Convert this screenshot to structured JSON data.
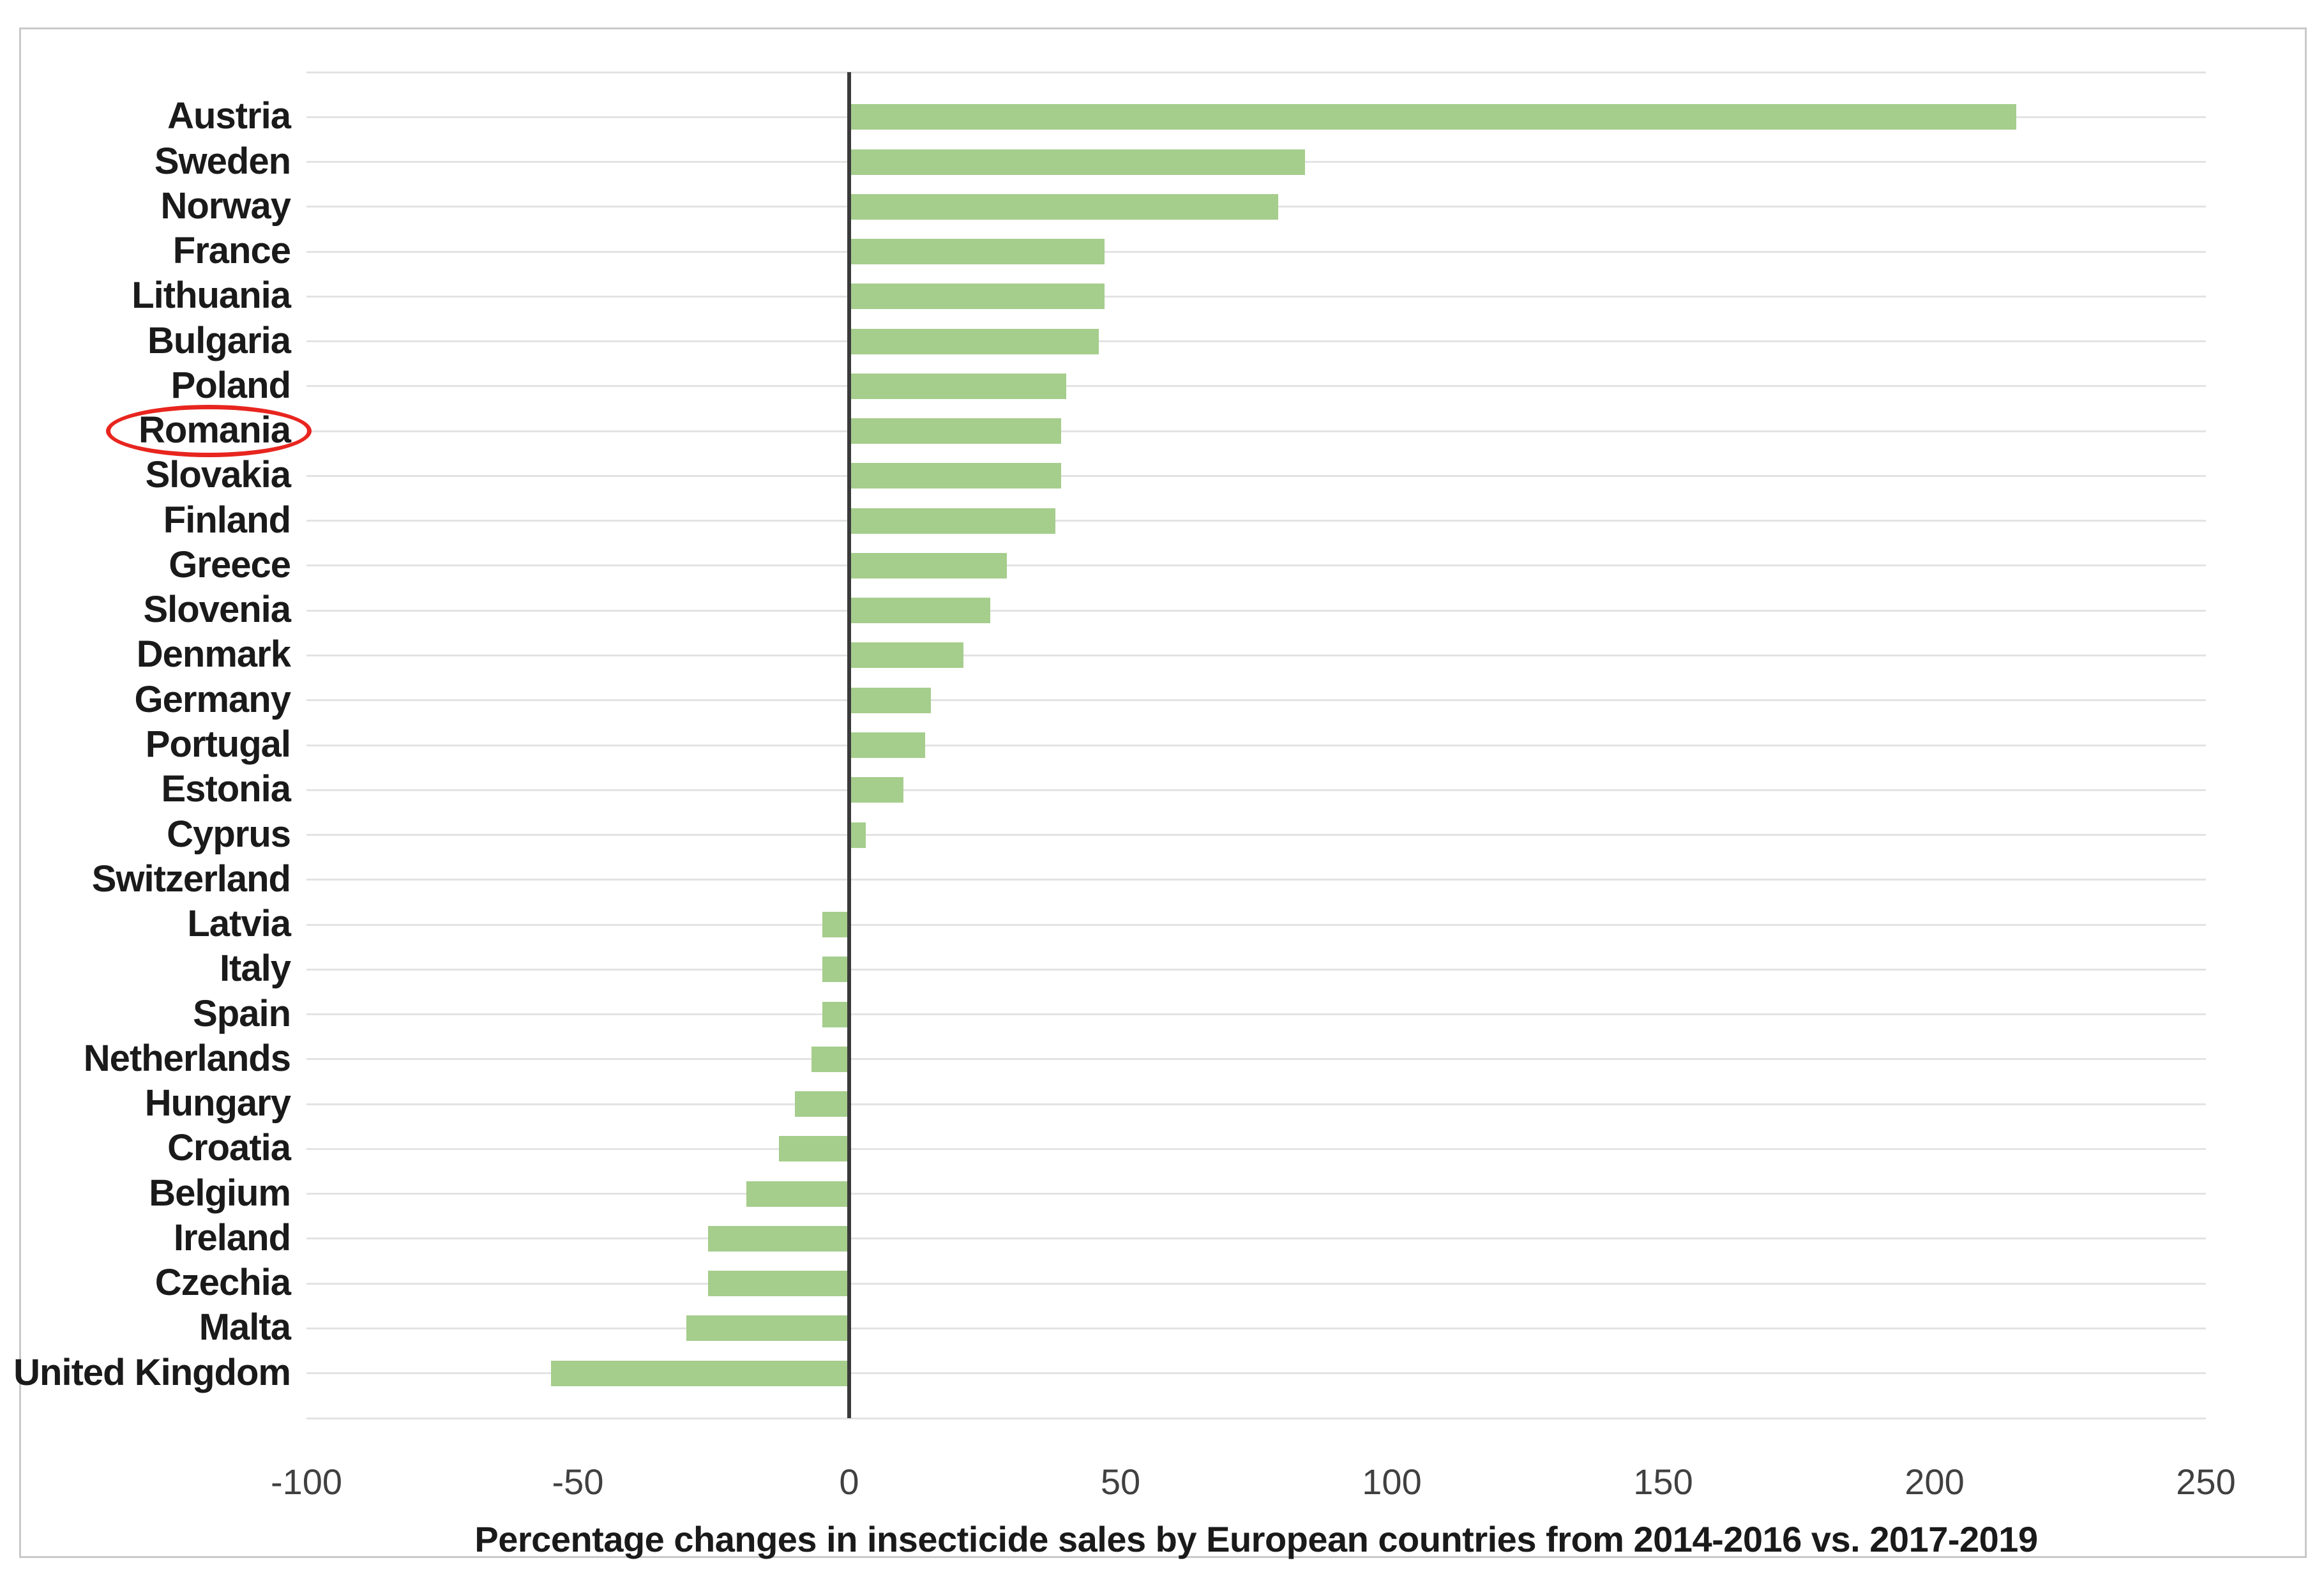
{
  "chart_data": {
    "type": "bar",
    "orientation": "horizontal",
    "title": "Percentage changes in insecticide sales by European countries from 2014-2016 vs. 2017-2019",
    "categories": [
      "Austria",
      "Sweden",
      "Norway",
      "France",
      "Lithuania",
      "Bulgaria",
      "Poland",
      "Romania",
      "Slovakia",
      "Finland",
      "Greece",
      "Slovenia",
      "Denmark",
      "Germany",
      "Portugal",
      "Estonia",
      "Cyprus",
      "Switzerland",
      "Latvia",
      "Italy",
      "Spain",
      "Netherlands",
      "Hungary",
      "Croatia",
      "Belgium",
      "Ireland",
      "Czechia",
      "Malta",
      "United Kingdom"
    ],
    "values": [
      215,
      84,
      79,
      47,
      47,
      46,
      40,
      39,
      39,
      38,
      29,
      26,
      21,
      15,
      14,
      10,
      3,
      0,
      -5,
      -5,
      -5,
      -7,
      -10,
      -13,
      -19,
      -26,
      -26,
      -30,
      -55
    ],
    "xlim": [
      -100,
      250
    ],
    "x_ticks": [
      -100,
      -50,
      0,
      50,
      100,
      150,
      200,
      250
    ],
    "xlabel": "Percentage changes in insecticide sales by European countries from 2014-2016 vs. 2017-2019",
    "ylabel": "",
    "grid": "horizontal category gridlines only, no vertical gridlines",
    "legend": "none",
    "highlight": {
      "category": "Romania",
      "style": "red ellipse around category label"
    }
  },
  "colors": {
    "background": "#ffffff",
    "bar_fill": "#a5cd8c",
    "gridline": "#e3e3e3",
    "zero_axis_line": "#3a3a3a",
    "frame_border": "#c9c9c9",
    "label_text": "#1a1a1a",
    "tick_text": "#404040",
    "highlight_ellipse": "#e8251f"
  }
}
